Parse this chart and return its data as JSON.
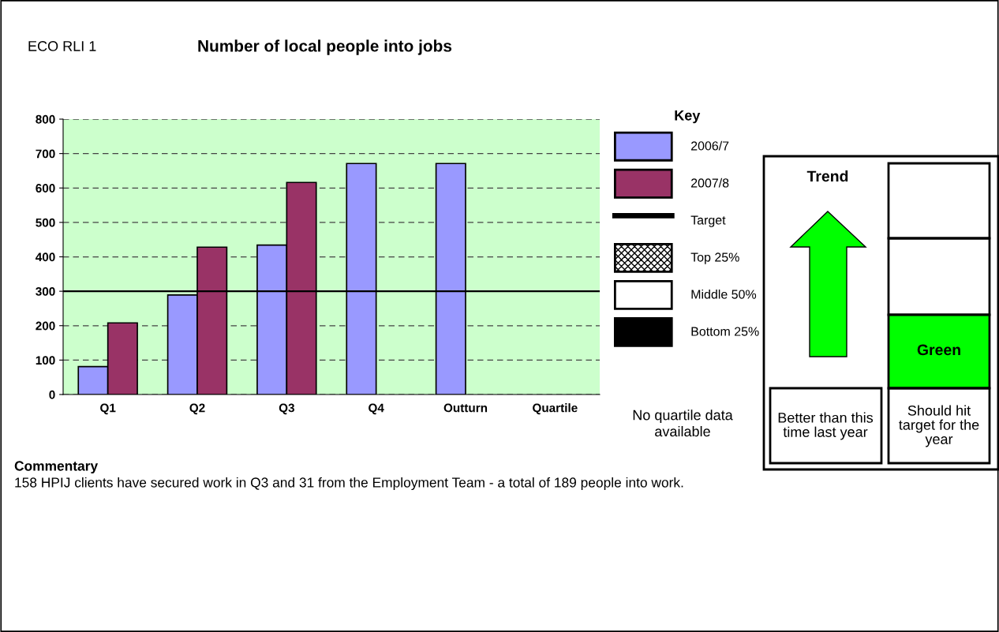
{
  "chart_data": {
    "type": "bar",
    "title": "Number of local people into jobs",
    "categories": [
      "Q1",
      "Q2",
      "Q3",
      "Q4",
      "Outturn",
      "Quartile"
    ],
    "series": [
      {
        "name": "2006/7",
        "color": "#9999ff",
        "values": [
          81,
          289,
          434,
          671,
          671,
          null
        ]
      },
      {
        "name": "2007/8",
        "color": "#993366",
        "values": [
          208,
          428,
          616,
          null,
          null,
          null
        ]
      }
    ],
    "ylim": [
      0,
      800
    ],
    "yticks": [
      0,
      100,
      200,
      300,
      400,
      500,
      600,
      700,
      800
    ],
    "grid": "y",
    "legend": "right",
    "legend_title": "Key",
    "ref_lines": [
      {
        "axis": "y",
        "value": 300,
        "label": "Target",
        "color": "#000000"
      }
    ],
    "annotations": [
      "ECO RLI 1",
      "Top 25%",
      "Middle 50%",
      "Bottom 25%",
      "No quartile data available",
      "Trend",
      "Green",
      "Better than this time last year",
      "Should hit target for the year",
      "Commentary",
      "158 HPIJ clients have secured work in Q3 and 31 from the Employment Team - a total of 189 people into work."
    ]
  }
}
